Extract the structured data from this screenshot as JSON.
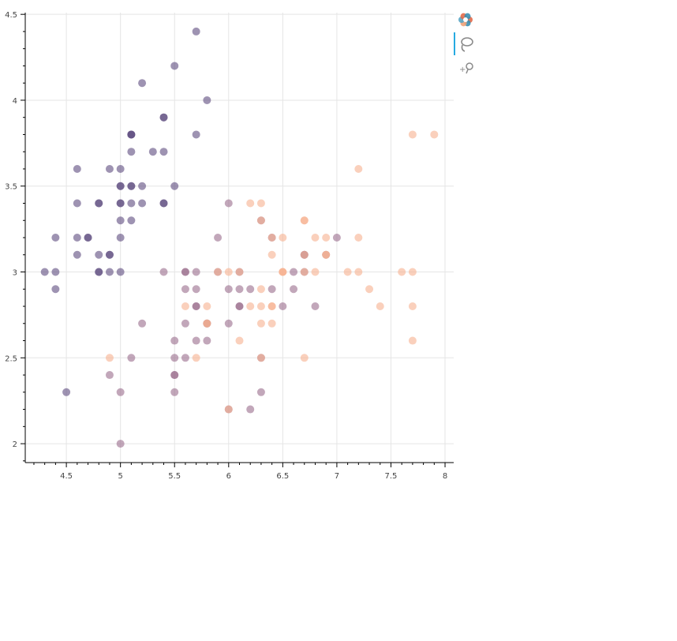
{
  "chart_data": {
    "type": "scatter",
    "title": "",
    "xlabel": "",
    "ylabel": "",
    "xlim": [
      4.12,
      8.08
    ],
    "ylim": [
      1.89,
      4.51
    ],
    "xticks": [
      4.5,
      5,
      5.5,
      6,
      6.5,
      7,
      7.5,
      8
    ],
    "yticks": [
      2,
      2.5,
      3,
      3.5,
      4,
      4.5
    ],
    "x_tick_labels": [
      "4.5",
      "5",
      "5.5",
      "6",
      "6.5",
      "7",
      "7.5",
      "8"
    ],
    "y_tick_labels": [
      "2",
      "2.5",
      "3",
      "3.5",
      "4",
      "4.5"
    ],
    "grid": true,
    "legend": "none",
    "point_alpha": 0.6,
    "colors": {
      "group_a": "#5e4b7f",
      "group_b": "#9a6c8c",
      "group_c": "#f6b08f"
    },
    "series": [
      {
        "color_key": "group_a",
        "points": [
          [
            5.1,
            3.5
          ],
          [
            4.9,
            3.0
          ],
          [
            4.7,
            3.2
          ],
          [
            4.6,
            3.1
          ],
          [
            5.0,
            3.6
          ],
          [
            5.4,
            3.9
          ],
          [
            4.6,
            3.4
          ],
          [
            5.0,
            3.4
          ],
          [
            4.4,
            2.9
          ],
          [
            4.9,
            3.1
          ],
          [
            5.4,
            3.7
          ],
          [
            4.8,
            3.4
          ],
          [
            4.8,
            3.0
          ],
          [
            4.3,
            3.0
          ],
          [
            5.8,
            4.0
          ],
          [
            5.7,
            4.4
          ],
          [
            5.4,
            3.9
          ],
          [
            5.1,
            3.5
          ],
          [
            5.7,
            3.8
          ],
          [
            5.1,
            3.8
          ],
          [
            5.4,
            3.4
          ],
          [
            5.1,
            3.7
          ],
          [
            4.6,
            3.6
          ],
          [
            5.1,
            3.3
          ],
          [
            4.8,
            3.4
          ],
          [
            5.0,
            3.0
          ],
          [
            5.0,
            3.4
          ],
          [
            5.2,
            3.5
          ],
          [
            5.2,
            3.4
          ],
          [
            4.7,
            3.2
          ],
          [
            4.8,
            3.1
          ],
          [
            5.4,
            3.4
          ],
          [
            5.2,
            4.1
          ],
          [
            5.5,
            4.2
          ],
          [
            4.9,
            3.1
          ],
          [
            5.0,
            3.2
          ],
          [
            5.5,
            3.5
          ],
          [
            4.9,
            3.6
          ],
          [
            4.4,
            3.0
          ],
          [
            5.1,
            3.4
          ],
          [
            5.0,
            3.5
          ],
          [
            4.5,
            2.3
          ],
          [
            4.4,
            3.2
          ],
          [
            5.0,
            3.5
          ],
          [
            5.1,
            3.8
          ],
          [
            4.8,
            3.0
          ],
          [
            5.1,
            3.8
          ],
          [
            4.6,
            3.2
          ],
          [
            5.3,
            3.7
          ],
          [
            5.0,
            3.3
          ]
        ]
      },
      {
        "color_key": "group_b",
        "points": [
          [
            7.0,
            3.2
          ],
          [
            6.4,
            3.2
          ],
          [
            6.9,
            3.1
          ],
          [
            5.5,
            2.3
          ],
          [
            6.5,
            2.8
          ],
          [
            5.7,
            2.8
          ],
          [
            6.3,
            3.3
          ],
          [
            4.9,
            2.4
          ],
          [
            6.6,
            2.9
          ],
          [
            5.2,
            2.7
          ],
          [
            5.0,
            2.0
          ],
          [
            5.9,
            3.0
          ],
          [
            6.0,
            2.2
          ],
          [
            6.1,
            2.9
          ],
          [
            5.6,
            2.9
          ],
          [
            6.7,
            3.1
          ],
          [
            5.6,
            3.0
          ],
          [
            5.8,
            2.7
          ],
          [
            6.2,
            2.2
          ],
          [
            5.6,
            2.5
          ],
          [
            5.9,
            3.2
          ],
          [
            6.1,
            2.8
          ],
          [
            6.3,
            2.5
          ],
          [
            6.1,
            2.8
          ],
          [
            6.4,
            2.9
          ],
          [
            6.6,
            3.0
          ],
          [
            6.8,
            2.8
          ],
          [
            6.7,
            3.0
          ],
          [
            6.0,
            2.9
          ],
          [
            5.7,
            2.6
          ],
          [
            5.5,
            2.4
          ],
          [
            5.5,
            2.4
          ],
          [
            5.8,
            2.7
          ],
          [
            6.0,
            2.7
          ],
          [
            5.4,
            3.0
          ],
          [
            6.0,
            3.4
          ],
          [
            6.7,
            3.1
          ],
          [
            6.3,
            2.3
          ],
          [
            5.6,
            3.0
          ],
          [
            5.5,
            2.5
          ],
          [
            5.5,
            2.6
          ],
          [
            6.1,
            3.0
          ],
          [
            5.8,
            2.6
          ],
          [
            5.0,
            2.3
          ],
          [
            5.6,
            2.7
          ],
          [
            5.7,
            3.0
          ],
          [
            5.7,
            2.9
          ],
          [
            6.2,
            2.9
          ],
          [
            5.1,
            2.5
          ],
          [
            5.7,
            2.8
          ]
        ]
      },
      {
        "color_key": "group_c",
        "points": [
          [
            6.3,
            3.3
          ],
          [
            5.8,
            2.7
          ],
          [
            7.1,
            3.0
          ],
          [
            6.3,
            2.9
          ],
          [
            6.5,
            3.0
          ],
          [
            7.6,
            3.0
          ],
          [
            4.9,
            2.5
          ],
          [
            7.3,
            2.9
          ],
          [
            6.7,
            2.5
          ],
          [
            7.2,
            3.6
          ],
          [
            6.5,
            3.2
          ],
          [
            6.4,
            2.7
          ],
          [
            6.8,
            3.0
          ],
          [
            5.7,
            2.5
          ],
          [
            5.8,
            2.8
          ],
          [
            6.4,
            3.2
          ],
          [
            6.5,
            3.0
          ],
          [
            7.7,
            3.8
          ],
          [
            7.7,
            2.6
          ],
          [
            6.0,
            2.2
          ],
          [
            6.9,
            3.2
          ],
          [
            5.6,
            2.8
          ],
          [
            7.7,
            2.8
          ],
          [
            6.3,
            2.7
          ],
          [
            6.7,
            3.3
          ],
          [
            7.2,
            3.2
          ],
          [
            6.2,
            2.8
          ],
          [
            6.1,
            3.0
          ],
          [
            6.4,
            2.8
          ],
          [
            7.2,
            3.0
          ],
          [
            7.4,
            2.8
          ],
          [
            7.9,
            3.8
          ],
          [
            6.4,
            2.8
          ],
          [
            6.3,
            2.8
          ],
          [
            6.1,
            2.6
          ],
          [
            7.7,
            3.0
          ],
          [
            6.3,
            3.4
          ],
          [
            6.4,
            3.1
          ],
          [
            6.0,
            3.0
          ],
          [
            6.9,
            3.1
          ],
          [
            6.7,
            3.1
          ],
          [
            6.9,
            3.1
          ],
          [
            5.8,
            2.7
          ],
          [
            6.8,
            3.2
          ],
          [
            6.7,
            3.3
          ],
          [
            6.7,
            3.0
          ],
          [
            6.3,
            2.5
          ],
          [
            6.5,
            3.0
          ],
          [
            6.2,
            3.4
          ],
          [
            5.9,
            3.0
          ]
        ]
      }
    ]
  },
  "toolbar": {
    "items": [
      {
        "icon": "bokeh-logo-icon"
      },
      {
        "icon": "lasso-select-icon",
        "active": true
      },
      {
        "icon": "hover-icon"
      }
    ]
  }
}
